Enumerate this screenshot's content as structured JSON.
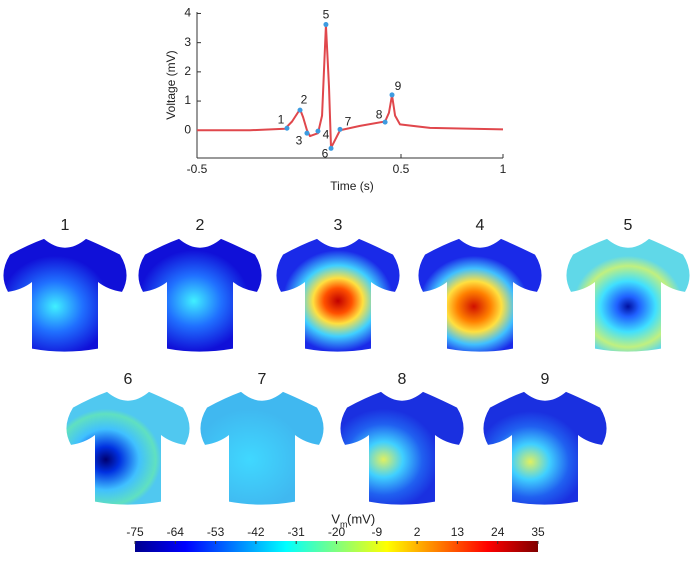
{
  "chart_data": [
    {
      "type": "line",
      "xlabel": "Time (s)",
      "ylabel": "Voltage (mV)",
      "color": "#e0474c",
      "marker_color": "#3d9be0",
      "x": [
        -0.5,
        -0.24,
        -0.069,
        -0.034,
        0.005,
        0.02,
        0.039,
        0.054,
        0.093,
        0.113,
        0.132,
        0.147,
        0.157,
        0.172,
        0.201,
        0.299,
        0.422,
        0.441,
        0.456,
        0.471,
        0.495,
        0.642,
        1
      ],
      "values": [
        0,
        0,
        0.05,
        0.3,
        0.72,
        0.45,
        0.0,
        -0.2,
        -0.1,
        0.5,
        3.6,
        1.5,
        -0.6,
        -0.4,
        0.0,
        0.15,
        0.3,
        0.6,
        1.2,
        0.5,
        0.2,
        0.08,
        0.03
      ],
      "annotations": [
        {
          "text": "1",
          "x": -0.059,
          "y": 0.07
        },
        {
          "text": "2",
          "x": 0.005,
          "y": 0.69
        },
        {
          "text": "3",
          "x": 0.039,
          "y": -0.1
        },
        {
          "text": "4",
          "x": 0.093,
          "y": -0.03
        },
        {
          "text": "5",
          "x": 0.132,
          "y": 3.62
        },
        {
          "text": "6",
          "x": 0.157,
          "y": -0.62
        },
        {
          "text": "7",
          "x": 0.201,
          "y": 0.03
        },
        {
          "text": "8",
          "x": 0.422,
          "y": 0.28
        },
        {
          "text": "9",
          "x": 0.456,
          "y": 1.21
        }
      ],
      "xlim": [
        -0.5,
        1
      ],
      "xticks": [
        -0.5,
        0.5,
        1
      ],
      "ylim": [
        -0.95,
        4.05
      ],
      "yticks": [
        0,
        1,
        2,
        3,
        4
      ]
    },
    {
      "type": "colorbar",
      "label": "V",
      "label_sub": "m",
      "label_unit": "(mV)",
      "colormap": "jet",
      "xlim": [
        -75,
        35
      ],
      "xticks": [
        -75,
        -64,
        -53,
        -42,
        -31,
        -20,
        -9,
        2,
        13,
        24,
        35
      ]
    }
  ],
  "maps": {
    "labels": [
      "1",
      "2",
      "3",
      "4",
      "5",
      "6",
      "7",
      "8",
      "9"
    ]
  }
}
